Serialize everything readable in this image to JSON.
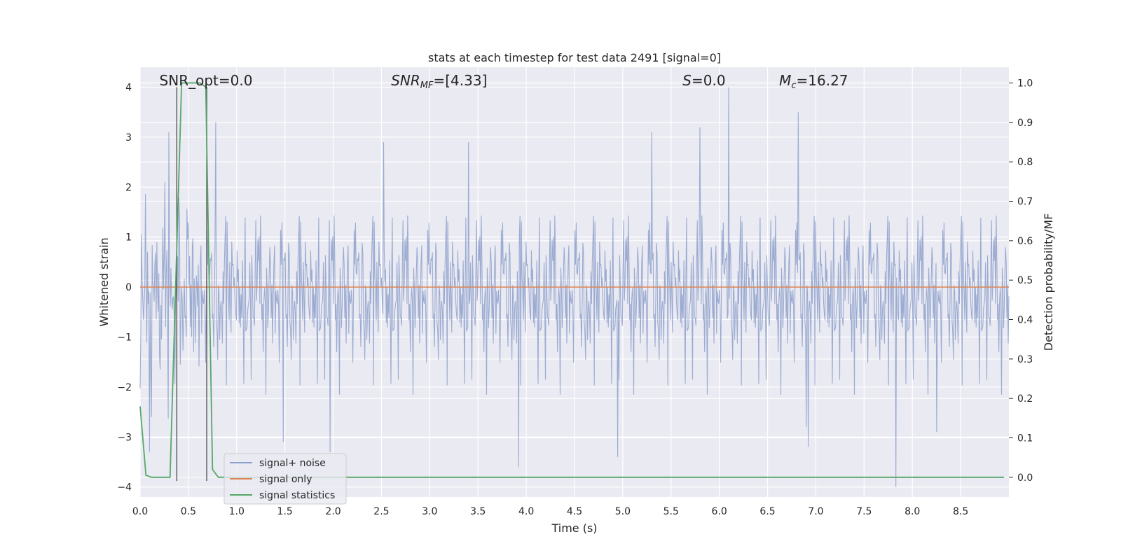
{
  "chart_data": {
    "type": "line",
    "title": "stats at each timestep for test data 2491 [signal=0]",
    "xlabel": "Time (s)",
    "ylabel": "Whitened strain",
    "ylabel_right": "Detection probability/MF",
    "xlim": [
      0.0,
      9.0
    ],
    "ylim": [
      -4.2,
      4.4
    ],
    "ylim_right": [
      -0.05,
      1.04
    ],
    "x_ticks": [
      "0.0",
      "0.5",
      "1.0",
      "1.5",
      "2.0",
      "2.5",
      "3.0",
      "3.5",
      "4.0",
      "4.5",
      "5.0",
      "5.5",
      "6.0",
      "6.5",
      "7.0",
      "7.5",
      "8.0",
      "8.5"
    ],
    "y_ticks": [
      "4",
      "3",
      "2",
      "1",
      "0",
      "−1",
      "−2",
      "−3",
      "−4"
    ],
    "y_ticks_right": [
      "1.0",
      "0.9",
      "0.8",
      "0.7",
      "0.6",
      "0.5",
      "0.4",
      "0.3",
      "0.2",
      "0.1",
      "0.0"
    ],
    "grid": true,
    "legend_position": "lower-left",
    "annotations": [
      {
        "key": "snr_opt",
        "text": "SNR_opt=0.0",
        "x": 0.2
      },
      {
        "key": "snr_mf",
        "text": "SNR",
        "sub": "MF",
        "rest": "=[4.33]",
        "x": 2.6
      },
      {
        "key": "s",
        "text": "S",
        "rest": "=0.0",
        "x": 5.62
      },
      {
        "key": "mc",
        "text": "M",
        "sub": "c",
        "rest": "=16.27",
        "x": 6.62
      }
    ],
    "vertical_markers": [
      0.38,
      0.69
    ],
    "series": [
      {
        "name": "signal+ noise",
        "color": "#8da0cb",
        "kind": "noise",
        "sigma": 0.85,
        "n_points": 1300,
        "peaks": [
          {
            "x": 0.1,
            "y": -3.3
          },
          {
            "x": 0.12,
            "y": -2.6
          },
          {
            "x": 0.3,
            "y": 3.1
          },
          {
            "x": 0.78,
            "y": 3.3
          },
          {
            "x": 1.48,
            "y": -3.1
          },
          {
            "x": 1.97,
            "y": -3.3
          },
          {
            "x": 3.92,
            "y": -3.6
          },
          {
            "x": 4.95,
            "y": -3.4
          },
          {
            "x": 6.1,
            "y": 4.0
          },
          {
            "x": 6.82,
            "y": 3.5
          },
          {
            "x": 6.92,
            "y": -3.2
          },
          {
            "x": 7.83,
            "y": -4.0
          },
          {
            "x": 5.8,
            "y": 3.2
          },
          {
            "x": 5.3,
            "y": 3.1
          },
          {
            "x": 2.52,
            "y": 2.9
          },
          {
            "x": 3.4,
            "y": 2.9
          },
          {
            "x": 8.25,
            "y": -2.9
          },
          {
            "x": 6.9,
            "y": -2.8
          }
        ]
      },
      {
        "name": "signal only",
        "color": "#dd8452",
        "kind": "flat",
        "y": 0.0
      },
      {
        "name": "signal statistics",
        "color": "#55a868",
        "kind": "line",
        "axis": "right",
        "x": [
          0.0,
          0.06,
          0.12,
          0.18,
          0.25,
          0.31,
          0.43,
          0.5,
          0.56,
          0.62,
          0.68,
          0.75,
          0.81,
          0.87,
          1.0,
          2.0,
          3.0,
          4.0,
          5.0,
          6.0,
          7.0,
          8.0,
          8.95
        ],
        "y": [
          0.18,
          0.005,
          0.0,
          0.0,
          0.0,
          0.0,
          1.0,
          1.0,
          1.0,
          1.0,
          0.99,
          0.02,
          0.0,
          0.0,
          0.0,
          0.0,
          0.0,
          0.0,
          0.0,
          0.0,
          0.0,
          0.0,
          0.0
        ]
      }
    ]
  },
  "colors": {
    "plot_bg": "#eaeaf2",
    "grid": "#ffffff",
    "marker": "#555555"
  }
}
